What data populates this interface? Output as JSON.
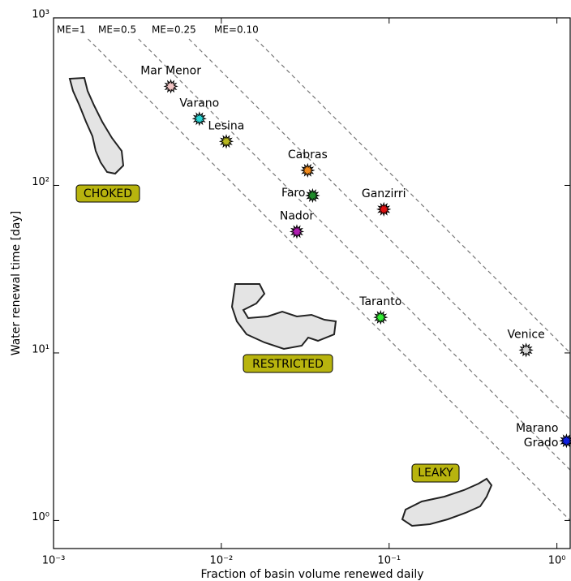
{
  "chart_data": {
    "type": "scatter",
    "x_label": "Fraction of basin volume renewed daily",
    "y_label": "Water renewal time [day]",
    "log_x": true,
    "log_y": true,
    "xlim": [
      0.001,
      1.2
    ],
    "ylim": [
      0.68,
      1000
    ],
    "xticks": [
      {
        "value": 0.001,
        "label": "10⁻³"
      },
      {
        "value": 0.01,
        "label": "10⁻²"
      },
      {
        "value": 0.1,
        "label": "10⁻¹"
      },
      {
        "value": 1,
        "label": "10⁰"
      }
    ],
    "yticks": [
      {
        "value": 1,
        "label": "10⁰"
      },
      {
        "value": 10,
        "label": "10¹"
      },
      {
        "value": 100,
        "label": "10²"
      },
      {
        "value": 1000,
        "label": "10³"
      }
    ],
    "reference_lines": [
      {
        "label": "ME=1",
        "constant": 1.2
      },
      {
        "label": "ME=0.5",
        "constant": 2.4
      },
      {
        "label": "ME=0.25",
        "constant": 4.8
      },
      {
        "label": "ME=0.10",
        "constant": 12
      }
    ],
    "points": [
      {
        "name": "Mar Menor",
        "x": 0.005,
        "y": 390,
        "color": "#f2c4c4"
      },
      {
        "name": "Varano",
        "x": 0.0074,
        "y": 250,
        "color": "#2ad4d4"
      },
      {
        "name": "Lesina",
        "x": 0.0107,
        "y": 183,
        "color": "#b8b820"
      },
      {
        "name": "Cabras",
        "x": 0.0327,
        "y": 123,
        "color": "#f08a1c"
      },
      {
        "name": "Faro",
        "x": 0.035,
        "y": 87,
        "color": "#1f8a2a"
      },
      {
        "name": "Ganzirri",
        "x": 0.093,
        "y": 72,
        "color": "#e01010"
      },
      {
        "name": "Nador",
        "x": 0.0282,
        "y": 53,
        "color": "#b01cb0"
      },
      {
        "name": "Taranto",
        "x": 0.089,
        "y": 16.3,
        "color": "#33ee33"
      },
      {
        "name": "Venice",
        "x": 0.655,
        "y": 10.4,
        "color": "#d8d8d8"
      },
      {
        "name": "Marano\nGrado",
        "x": 1.14,
        "y": 2.99,
        "color": "#1020e0"
      }
    ],
    "annotations": [
      "CHOKED",
      "RESTRICTED",
      "LEAKY"
    ]
  }
}
